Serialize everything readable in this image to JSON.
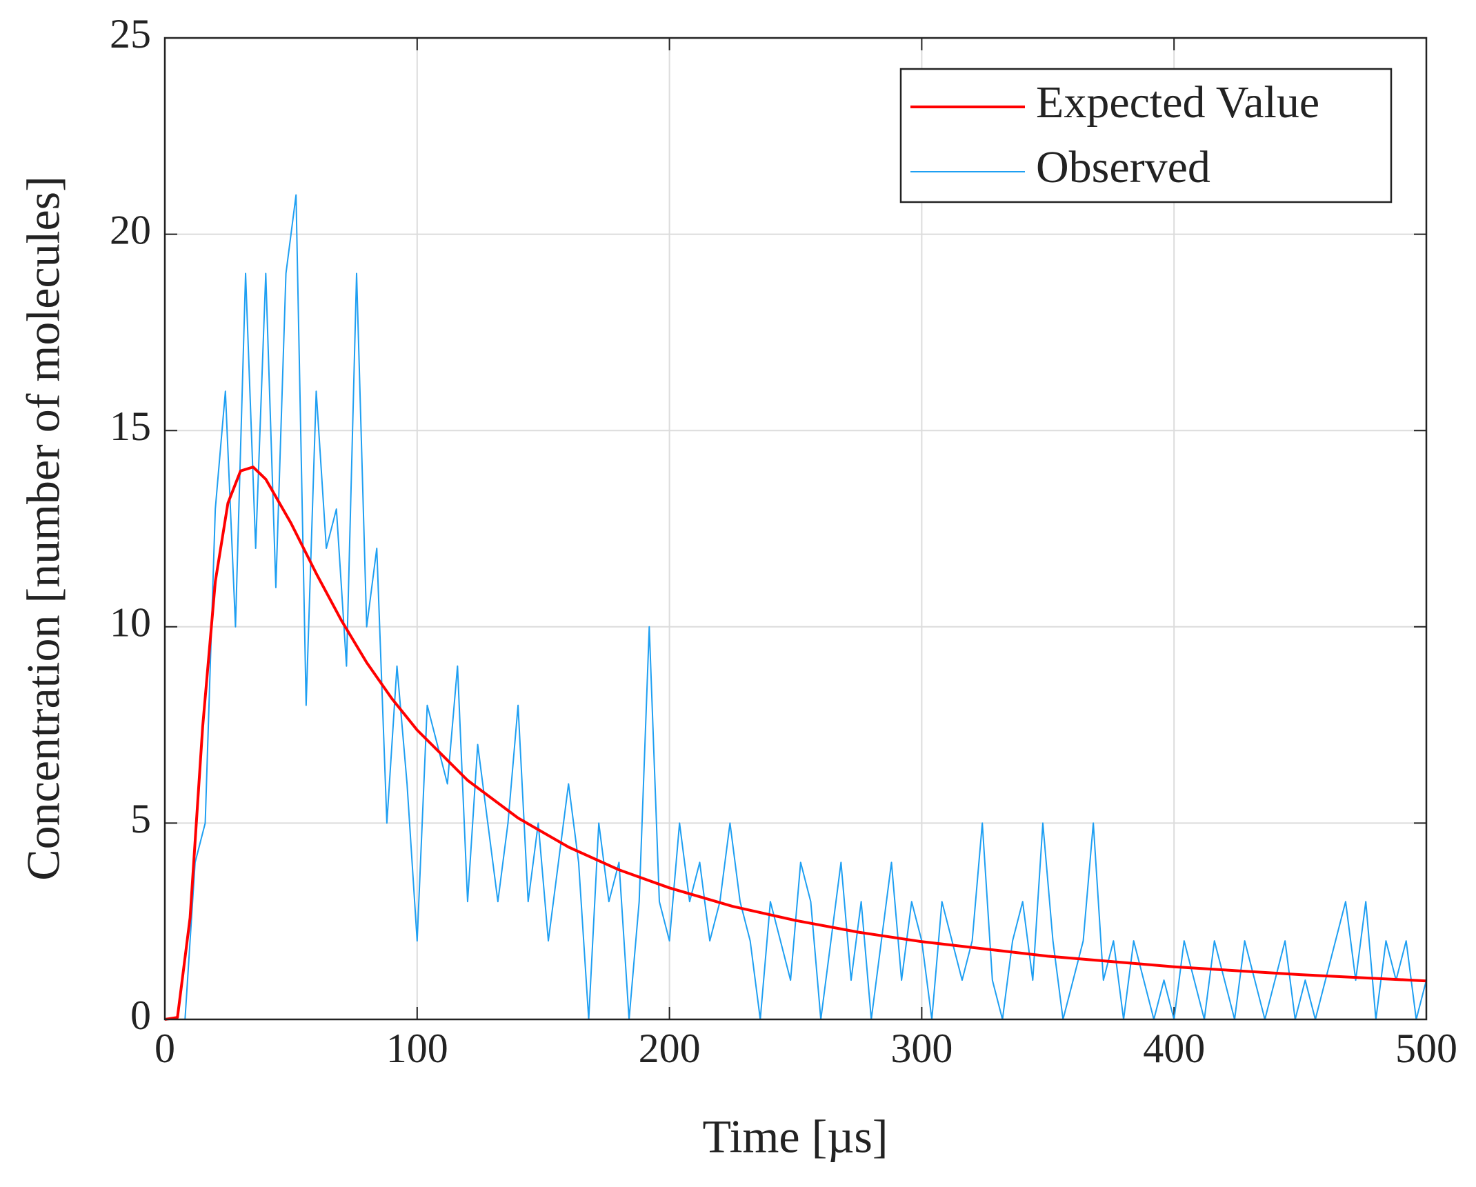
{
  "chart_data": {
    "type": "line",
    "xlabel": "Time [µs]",
    "ylabel": "Concentration [number of molecules]",
    "xlim": [
      0,
      500
    ],
    "xticks": [
      0,
      100,
      200,
      300,
      400,
      500
    ],
    "ylim": [
      0,
      25
    ],
    "yticks": [
      0,
      5,
      10,
      15,
      20,
      25
    ],
    "grid": true,
    "legend": "northeast",
    "series": [
      {
        "name": "Expected Value",
        "color": "#ff0000",
        "x": [
          0,
          5,
          10,
          15,
          20,
          25,
          30,
          35,
          40,
          50,
          60,
          70,
          80,
          90,
          100,
          120,
          140,
          160,
          180,
          200,
          225,
          250,
          275,
          300,
          350,
          400,
          450,
          500
        ],
        "values": [
          0,
          0.05,
          2.59,
          7.46,
          11.15,
          13.15,
          13.97,
          14.07,
          13.76,
          12.64,
          11.36,
          10.16,
          9.09,
          8.17,
          7.37,
          6.09,
          5.13,
          4.39,
          3.81,
          3.35,
          2.88,
          2.52,
          2.22,
          1.98,
          1.61,
          1.34,
          1.14,
          0.98
        ]
      },
      {
        "name": "Observed",
        "color": "#1e9ff2",
        "x": [
          0,
          4,
          8,
          12,
          16,
          20,
          24,
          28,
          32,
          36,
          40,
          44,
          48,
          52,
          56,
          60,
          64,
          68,
          72,
          76,
          80,
          84,
          88,
          92,
          96,
          100,
          104,
          108,
          112,
          116,
          120,
          124,
          128,
          132,
          136,
          140,
          144,
          148,
          152,
          156,
          160,
          164,
          168,
          172,
          176,
          180,
          184,
          188,
          192,
          196,
          200,
          204,
          208,
          212,
          216,
          220,
          224,
          228,
          232,
          236,
          240,
          244,
          248,
          252,
          256,
          260,
          264,
          268,
          272,
          276,
          280,
          284,
          288,
          292,
          296,
          300,
          304,
          308,
          312,
          316,
          320,
          324,
          328,
          332,
          336,
          340,
          344,
          348,
          352,
          356,
          360,
          364,
          368,
          372,
          376,
          380,
          384,
          388,
          392,
          396,
          400,
          404,
          408,
          412,
          416,
          420,
          424,
          428,
          432,
          436,
          440,
          444,
          448,
          452,
          456,
          460,
          464,
          468,
          472,
          476,
          480,
          484,
          488,
          492,
          496,
          500
        ],
        "values": [
          0,
          0,
          0,
          4,
          5,
          13,
          16,
          10,
          19,
          12,
          19,
          11,
          19,
          21,
          8,
          16,
          12,
          13,
          9,
          19,
          10,
          12,
          5,
          9,
          6,
          2,
          8,
          7,
          6,
          9,
          3,
          7,
          5,
          3,
          5,
          8,
          3,
          5,
          2,
          4,
          6,
          4,
          0,
          5,
          3,
          4,
          0,
          3,
          10,
          3,
          2,
          5,
          3,
          4,
          2,
          3,
          5,
          3,
          2,
          0,
          3,
          2,
          1,
          4,
          3,
          0,
          2,
          4,
          1,
          3,
          0,
          2,
          4,
          1,
          3,
          2,
          0,
          3,
          2,
          1,
          2,
          5,
          1,
          0,
          2,
          3,
          1,
          5,
          2,
          0,
          1,
          2,
          5,
          1,
          2,
          0,
          2,
          1,
          0,
          1,
          0,
          2,
          1,
          0,
          2,
          1,
          0,
          2,
          1,
          0,
          1,
          2,
          0,
          1,
          0,
          1,
          2,
          3,
          1,
          3,
          0,
          2,
          1,
          2,
          0,
          1
        ]
      }
    ]
  }
}
